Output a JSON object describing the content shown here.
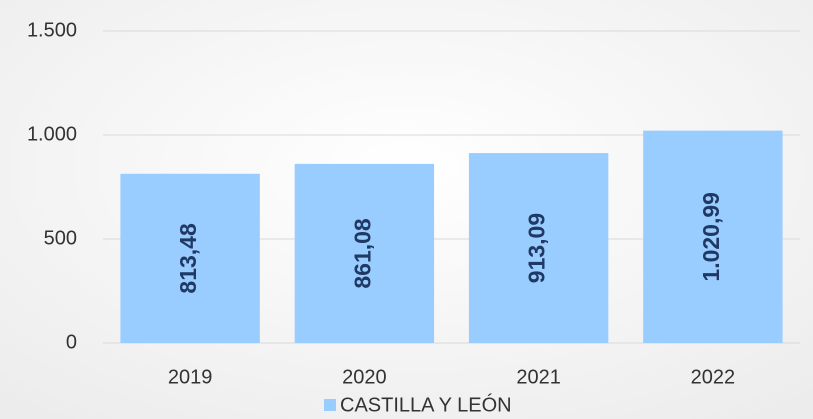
{
  "chart_data": {
    "type": "bar",
    "categories": [
      "2019",
      "2020",
      "2021",
      "2022"
    ],
    "series": [
      {
        "name": "CASTILLA Y LEÓN",
        "color": "#99ccff",
        "values": [
          813.48,
          861.08,
          913.09,
          1020.99
        ],
        "value_labels": [
          "813,48",
          "861,08",
          "913,09",
          "1.020,99"
        ]
      }
    ],
    "ylim": [
      0,
      1500
    ],
    "yticks": [
      0,
      500,
      {
        "value": 1000,
        "label": "1.000"
      },
      {
        "value": 1500,
        "label": "1.500"
      }
    ],
    "grid": true,
    "legend": "bottom"
  }
}
